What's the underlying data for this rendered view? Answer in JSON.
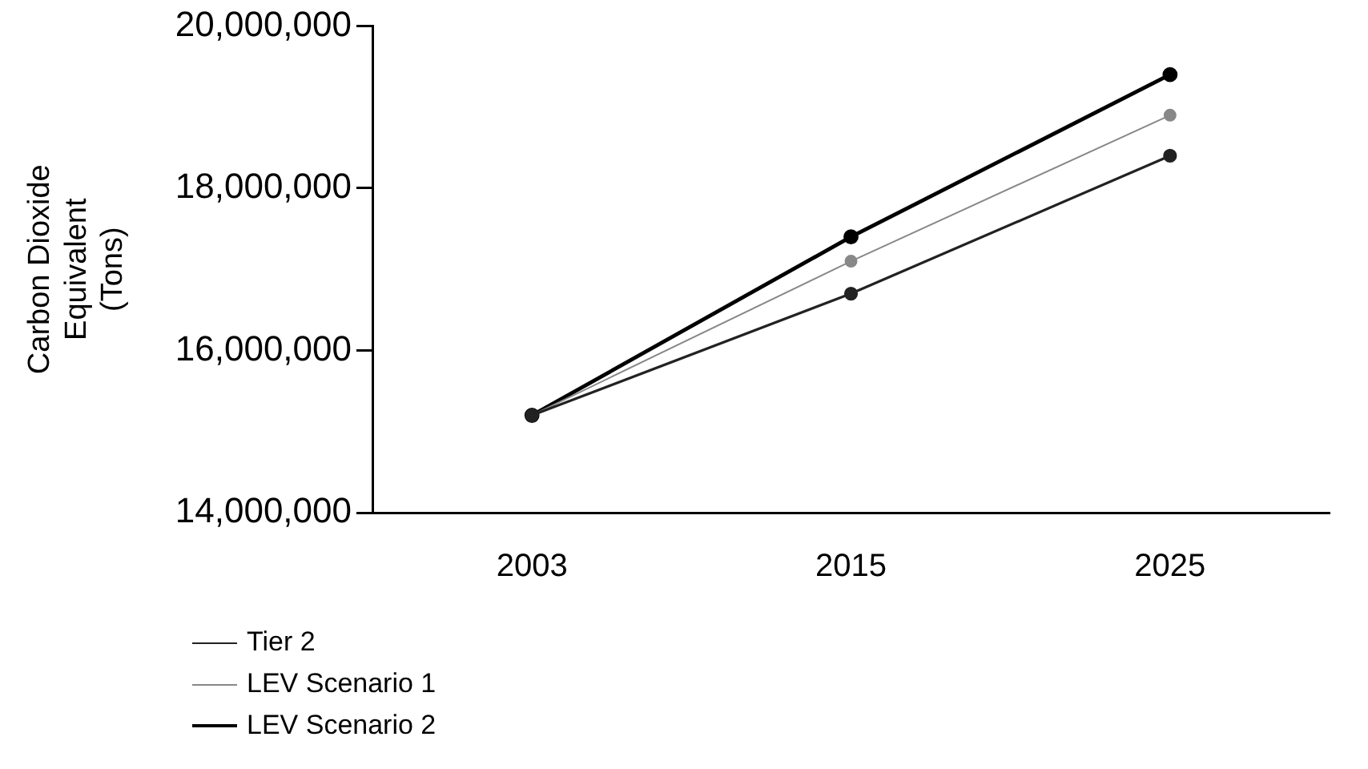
{
  "chart_data": {
    "type": "line",
    "ylabel": "Carbon Dioxide\nEquivalent\n(Tons)",
    "categories": [
      "2003",
      "2015",
      "2025"
    ],
    "series": [
      {
        "name": "Tier 2",
        "color": "#222222",
        "values": [
          15200000,
          16700000,
          18400000
        ]
      },
      {
        "name": "LEV Scenario 1",
        "color": "#888888",
        "values": [
          15200000,
          17100000,
          18900000
        ]
      },
      {
        "name": "LEV Scenario 2",
        "color": "#000000",
        "values": [
          15200000,
          17400000,
          19400000
        ]
      }
    ],
    "ylim": [
      14000000,
      20000000
    ],
    "yticks": [
      {
        "value": 14000000,
        "label": "14,000,000"
      },
      {
        "value": 16000000,
        "label": "16,000,000"
      },
      {
        "value": 18000000,
        "label": "18,000,000"
      },
      {
        "value": 20000000,
        "label": "20,000,000"
      }
    ],
    "grid": false,
    "legend": "bottom left",
    "marker": "circle",
    "line_style": "solid"
  }
}
